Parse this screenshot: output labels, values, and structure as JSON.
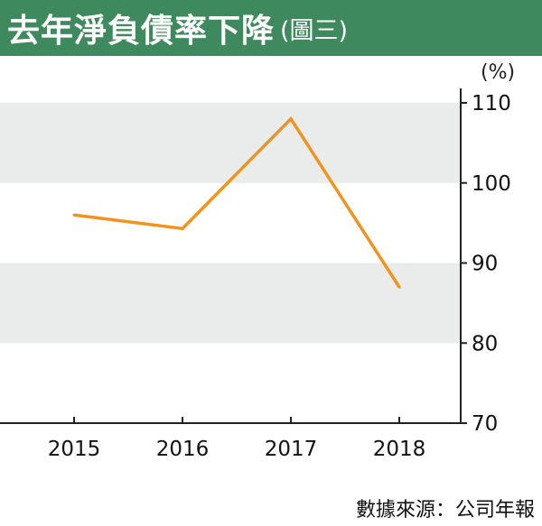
{
  "header": {
    "title": "去年淨負債率下降",
    "subtitle": "(圖三)"
  },
  "source": "數據來源：公司年報",
  "colors": {
    "header_bg": "#3e8a5e",
    "line": "#f0941f",
    "band": "#e9ecea",
    "axis": "#222222"
  },
  "chart_data": {
    "type": "line",
    "title": "去年淨負債率下降",
    "unit_label": "(%)",
    "categories": [
      "2015",
      "2016",
      "2017",
      "2018"
    ],
    "series": [
      {
        "values": [
          96,
          94.3,
          108,
          87
        ]
      }
    ],
    "ylim": [
      70,
      110
    ],
    "yticks": [
      70,
      80,
      90,
      100,
      110
    ],
    "ytick_labels": [
      "70",
      "80",
      "90",
      "100",
      "110"
    ],
    "y_axis_position": "right",
    "shaded_bands": [
      [
        80,
        90
      ],
      [
        100,
        110
      ]
    ]
  }
}
